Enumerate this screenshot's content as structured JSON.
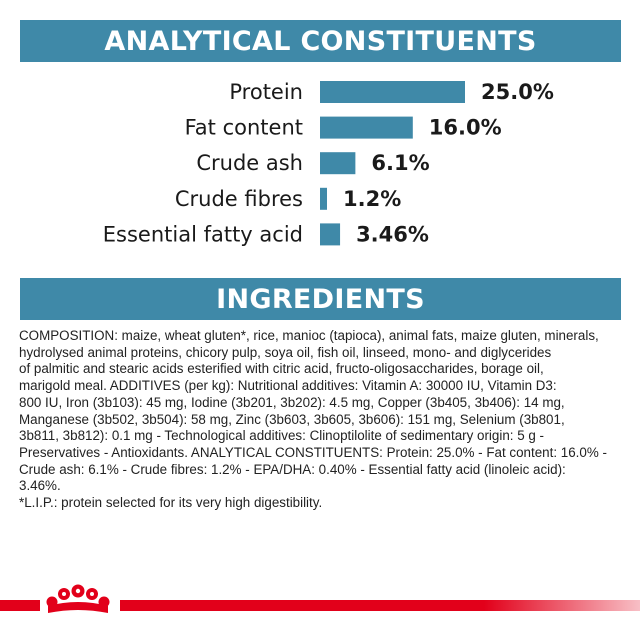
{
  "analytical_heading": "ANALYTICAL CONSTITUENTS",
  "ingredients_heading": "INGREDIENTS",
  "colors": {
    "banner": "#3f89a8",
    "bar": "#3f89a8",
    "ribbon": "#e2001a"
  },
  "chart_data": {
    "type": "bar",
    "orientation": "horizontal",
    "title": "ANALYTICAL CONSTITUENTS",
    "categories": [
      "Protein",
      "Fat content",
      "Crude ash",
      "Crude fibres",
      "Essential fatty acid"
    ],
    "values": [
      25.0,
      16.0,
      6.1,
      1.2,
      3.46
    ],
    "value_labels": [
      "25.0%",
      "16.0%",
      "6.1%",
      "1.2%",
      "3.46%"
    ],
    "unit": "%",
    "grid": false,
    "legend": "none"
  },
  "ingredients_lines": [
    "COMPOSITION: maize, wheat gluten*, rice, manioc (tapioca), animal fats, maize gluten, minerals,",
    "hydrolysed animal proteins, chicory pulp, soya oil, fish oil, linseed, mono- and diglycerides",
    "of palmitic and stearic acids esterified with citric acid, fructo-oligosaccharides, borage oil,",
    "marigold meal. ADDITIVES (per kg): Nutritional additives: Vitamin A: 30000 IU, Vitamin D3:",
    "800 IU, Iron (3b103): 45 mg, Iodine (3b201, 3b202): 4.5 mg, Copper (3b405, 3b406): 14 mg,",
    "Manganese (3b502, 3b504): 58 mg, Zinc (3b603, 3b605, 3b606): 151 mg, Selenium (3b801,",
    "3b811, 3b812): 0.1 mg - Technological additives: Clinoptilolite of sedimentary origin: 5 g -",
    "Preservatives - Antioxidants. ANALYTICAL CONSTITUENTS: Protein: 25.0% - Fat content: 16.0% -",
    "Crude ash: 6.1% - Crude fibres: 1.2% - EPA/DHA: 0.40% - Essential fatty acid (linoleic acid):",
    "3.46%.",
    "*L.I.P.: protein selected for its very high digestibility."
  ]
}
